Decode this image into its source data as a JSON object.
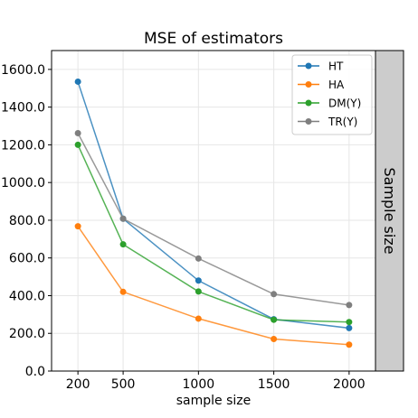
{
  "chart_data": {
    "type": "line",
    "title": "MSE of estimators",
    "xlabel": "sample size",
    "ylabel": "",
    "facet_label": "Sample size",
    "x": [
      200,
      500,
      1000,
      1500,
      2000
    ],
    "x_ticks": [
      200,
      500,
      1000,
      1500,
      2000
    ],
    "x_tick_labels": [
      "200",
      "500",
      "1000",
      "1500",
      "2000"
    ],
    "xlim": [
      25,
      2175
    ],
    "ylim": [
      0,
      1700
    ],
    "y_ticks": [
      0,
      200,
      400,
      600,
      800,
      1000,
      1200,
      1400,
      1600
    ],
    "y_tick_labels": [
      "0.0",
      "200.0",
      "400.0",
      "600.0",
      "800.0",
      "1000.0",
      "1200.0",
      "1400.0",
      "1600.0"
    ],
    "grid": true,
    "legend_position": "top-right",
    "series": [
      {
        "name": "HT",
        "color": "#1f77b4",
        "values": [
          1535,
          808,
          480,
          275,
          228
        ]
      },
      {
        "name": "HA",
        "color": "#ff7f0e",
        "values": [
          768,
          420,
          278,
          170,
          140
        ]
      },
      {
        "name": "DM(Y)",
        "color": "#2ca02c",
        "values": [
          1200,
          672,
          422,
          272,
          260
        ]
      },
      {
        "name": "TR(Y)",
        "color": "#7f7f7f",
        "values": [
          1262,
          808,
          597,
          408,
          350
        ]
      }
    ]
  }
}
